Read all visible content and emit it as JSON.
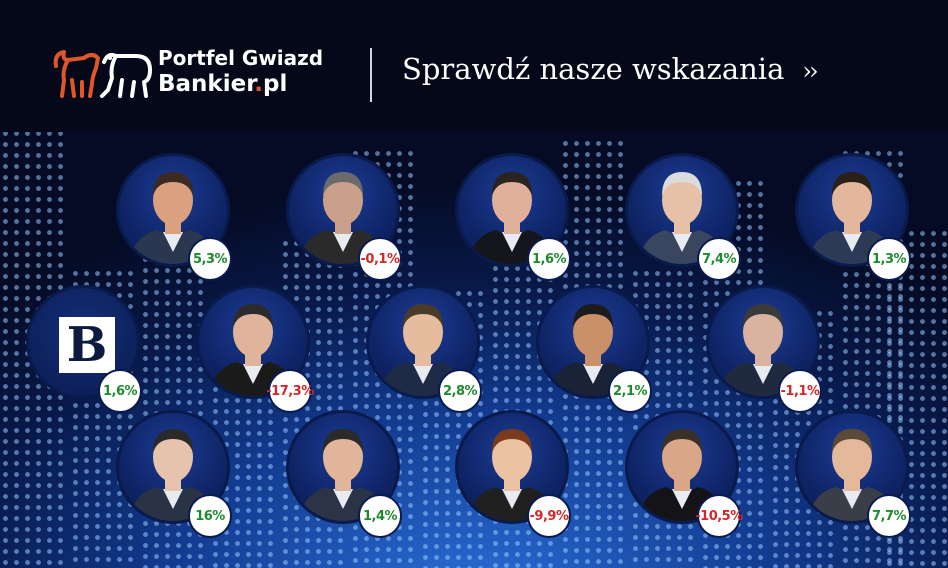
{
  "header": {
    "logo_line1": "Portfel Gwiazd",
    "logo_line2_main": "Bankier",
    "logo_line2_dot": ".",
    "logo_line2_tld": "pl",
    "cta_label": "Sprawdź nasze wskazania",
    "cta_arrow": "››"
  },
  "colors": {
    "positive": "#1e8a2e",
    "negative": "#d0282b",
    "brand_accent": "#e0562b",
    "background": "#0a1a4e"
  },
  "portfolios": [
    {
      "return": "5,3%",
      "trend": "pos",
      "type": "person"
    },
    {
      "return": "-0,1%",
      "trend": "neg",
      "type": "person"
    },
    {
      "return": "1,6%",
      "trend": "pos",
      "type": "person"
    },
    {
      "return": "7,4%",
      "trend": "pos",
      "type": "person"
    },
    {
      "return": "1,3%",
      "trend": "pos",
      "type": "person"
    },
    {
      "return": "1,6%",
      "trend": "pos",
      "type": "bankier-logo",
      "logo_letter": "B"
    },
    {
      "return": "-17,3%",
      "trend": "neg",
      "type": "person"
    },
    {
      "return": "2,8%",
      "trend": "pos",
      "type": "person"
    },
    {
      "return": "2,1%",
      "trend": "pos",
      "type": "person"
    },
    {
      "return": "-1,1%",
      "trend": "neg",
      "type": "person"
    },
    {
      "return": "16%",
      "trend": "pos",
      "type": "person"
    },
    {
      "return": "1,4%",
      "trend": "pos",
      "type": "person"
    },
    {
      "return": "-9,9%",
      "trend": "neg",
      "type": "person"
    },
    {
      "return": "-10,5%",
      "trend": "neg",
      "type": "person"
    },
    {
      "return": "7,7%",
      "trend": "pos",
      "type": "person"
    }
  ]
}
